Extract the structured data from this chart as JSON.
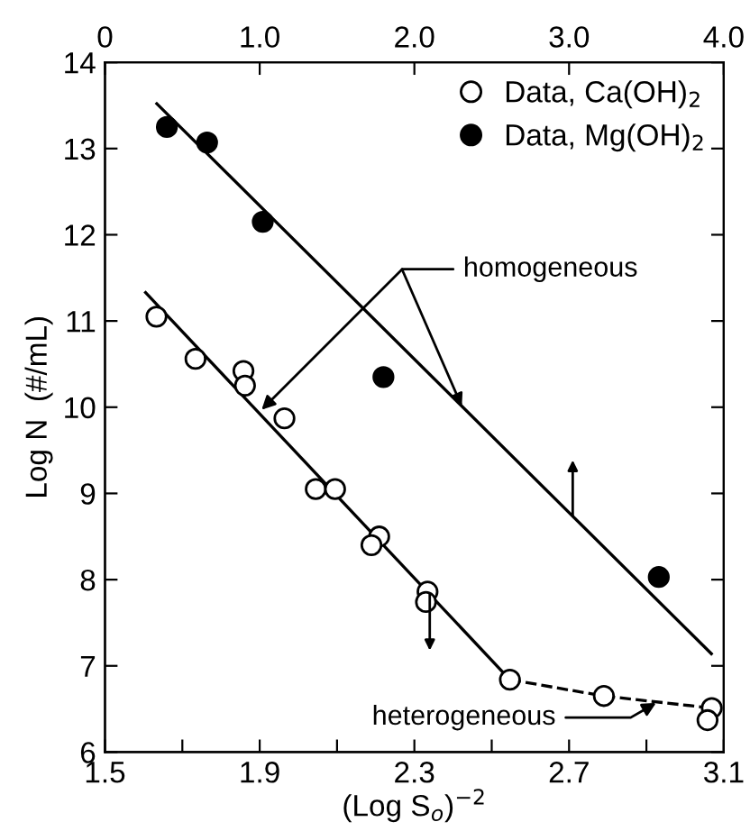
{
  "chart_data": {
    "type": "scatter",
    "xlabel": "(Log S$_{o}$)$^{−2}$",
    "ylabel": "Log N  (#/mL)",
    "xlim": [
      1.5,
      3.1
    ],
    "xticks": [
      1.5,
      {
        "value": 1.7,
        "label": null
      },
      1.9,
      {
        "value": 2.1,
        "label": null
      },
      2.3,
      {
        "value": 2.5,
        "label": null
      },
      2.7,
      {
        "value": 2.9,
        "label": null
      },
      3.1
    ],
    "x2lim": [
      0,
      4
    ],
    "x2ticks": [
      0,
      {
        "value": 1,
        "label": "1.0"
      },
      {
        "value": 2,
        "label": "2.0"
      },
      {
        "value": 3,
        "label": "3.0"
      },
      {
        "value": 4,
        "label": "4.0"
      }
    ],
    "ylim": [
      6,
      14
    ],
    "yticks": [
      6,
      7,
      8,
      9,
      10,
      11,
      12,
      13,
      14
    ],
    "grid": false,
    "legend": "top right",
    "marker": "circle",
    "series": [
      {
        "name": "Data, Ca(OH)$_{2}$",
        "color": "#ffffff",
        "x": [
          1.633,
          1.734,
          1.858,
          1.862,
          1.964,
          2.045,
          2.095,
          2.209,
          2.189,
          2.334,
          2.33,
          2.547,
          2.79,
          3.069,
          3.058
        ],
        "values": [
          11.05,
          10.56,
          10.42,
          10.25,
          9.87,
          9.05,
          9.05,
          8.5,
          8.4,
          7.86,
          7.74,
          6.84,
          6.65,
          6.51,
          6.37
        ]
      },
      {
        "name": "Data, Mg(OH)$_{2}$",
        "axis": "x2",
        "color": "#000000",
        "x": [
          0.4,
          0.66,
          1.02,
          1.8,
          3.58
        ],
        "values": [
          13.25,
          13.07,
          12.15,
          10.35,
          8.03
        ]
      },
      {
        "type": "line",
        "marker": "none",
        "color": "#000000",
        "line_style": "solid",
        "x": [
          1.605,
          2.547
        ],
        "values": [
          11.33,
          6.84
        ]
      },
      {
        "type": "line",
        "marker": "none",
        "color": "#000000",
        "line_style": "solid",
        "axis": "x2",
        "x": [
          0.335,
          3.92
        ],
        "values": [
          13.52,
          7.14
        ]
      },
      {
        "type": "line",
        "marker": "none",
        "color": "#000000",
        "line_style": "dashed",
        "x": [
          2.547,
          2.79,
          3.069
        ],
        "values": [
          6.84,
          6.65,
          6.51
        ]
      }
    ],
    "annotations": [
      {
        "text": "homogeneous",
        "x": 1.905,
        "y": 9.97
      },
      {
        "text": "heterogeneous",
        "x": 2.925,
        "y": 6.57
      }
    ]
  }
}
